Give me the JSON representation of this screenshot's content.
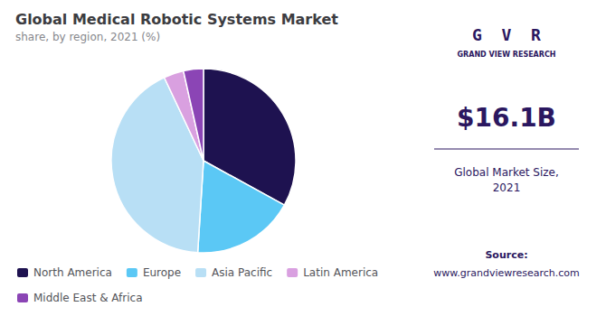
{
  "chart_data": {
    "type": "pie",
    "title": "Global Medical Robotic Systems Market",
    "subtitle": "share, by region, 2021 (%)",
    "categories": [
      "North America",
      "Europe",
      "Asia Pacific",
      "Latin America",
      "Middle East & Africa"
    ],
    "values": [
      33,
      18,
      42,
      3.5,
      3.5
    ],
    "colors": [
      "#1e1250",
      "#5bc8f5",
      "#b8dff5",
      "#d9a0e0",
      "#8b45b5"
    ],
    "legend": "lower left",
    "annotations": [
      "G  V  R",
      "GRAND VIEW RESEARCH",
      "$16.1B",
      "Global Market Size,\n2021",
      "Source:",
      "www.grandviewresearch.com"
    ]
  }
}
